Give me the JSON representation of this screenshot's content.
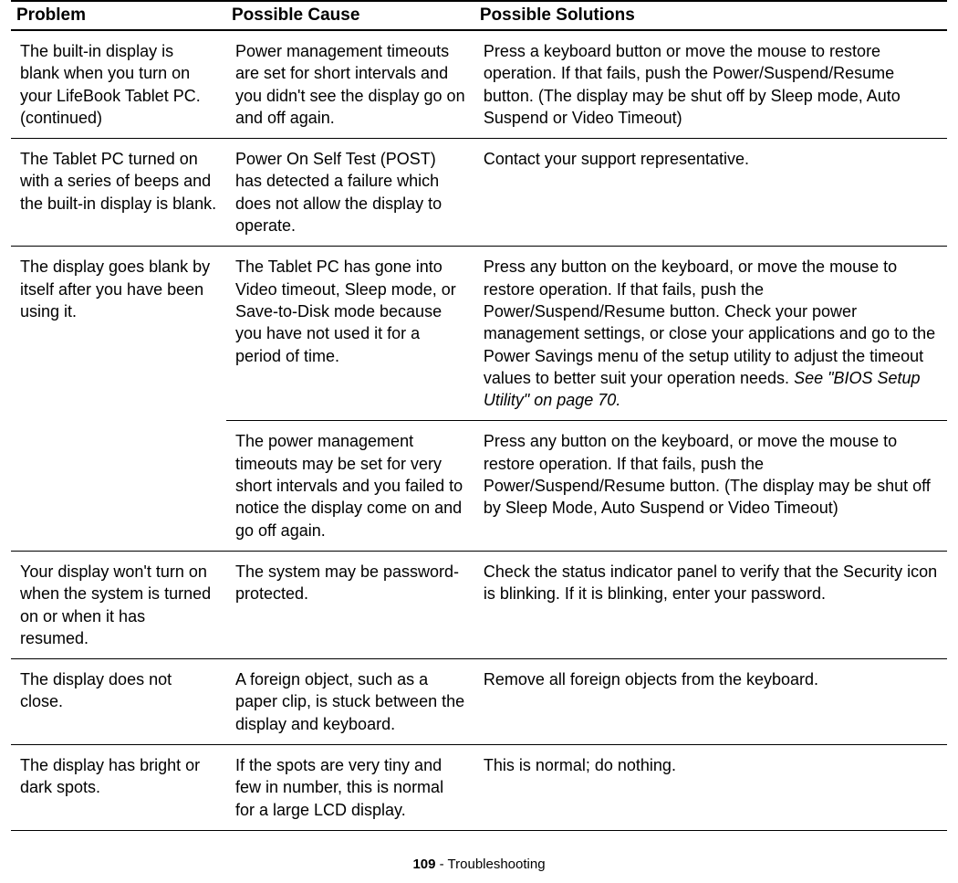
{
  "headers": {
    "problem": "Problem",
    "cause": "Possible Cause",
    "solutions": "Possible Solutions"
  },
  "rows": {
    "r1": {
      "problem": "The built-in display is blank when you turn on your LifeBook Tablet PC. (continued)",
      "cause": "Power management timeouts are set for short intervals and you didn't see the display go on and off again.",
      "solution": "Press a keyboard button or move the mouse to restore operation. If that fails, push the Power/Suspend/Resume button. (The display may be shut off by Sleep mode, Auto Suspend or Video Timeout)"
    },
    "r2": {
      "problem": "The Tablet PC turned on with a series of beeps and the built-in display is blank.",
      "cause": "Power On Self Test (POST) has detected a failure which does not allow the display to operate.",
      "solution": " Contact your support representative."
    },
    "r3": {
      "problem": "The display goes blank by itself after you have been using it.",
      "cause": "The Tablet PC has gone into Video timeout, Sleep mode, or Save-to-Disk mode because you have not used it for a period of time.",
      "solution_pre": "Press any button on the keyboard, or move the mouse to restore operation. If that fails, push the Power/Suspend/Resume button. Check your power management settings, or close your applications and go to the Power Savings menu of the setup utility to adjust the timeout values to better suit your operation needs. ",
      "solution_italic": "See \"BIOS Setup Utility\" on page 70."
    },
    "r3b": {
      "cause": "The power management timeouts may be set for very short intervals and you failed to notice the display come on and go off again.",
      "solution": "Press any button on the keyboard, or move the mouse to restore operation. If that fails, push the Power/Suspend/Resume button. (The display may be shut off by Sleep Mode, Auto Suspend or Video Timeout)"
    },
    "r4": {
      "problem": "Your display won't turn on when the system is turned on or when it has resumed.",
      "cause": "The system may be password-protected.",
      "solution": "Check the status indicator panel to verify that the Security icon is blinking. If it is blinking, enter your password."
    },
    "r5": {
      "problem": "The display does not close.",
      "cause": "A foreign object, such as a paper clip, is stuck between the display and keyboard.",
      "solution": "Remove all foreign objects from the keyboard."
    },
    "r6": {
      "problem": "The display has bright or dark spots.",
      "cause": "If the spots are very tiny and few in number, this is normal for a large LCD display.",
      "solution": "This is normal; do nothing."
    }
  },
  "footer": {
    "page_number": "109",
    "separator": " - ",
    "section": "Troubleshooting"
  }
}
